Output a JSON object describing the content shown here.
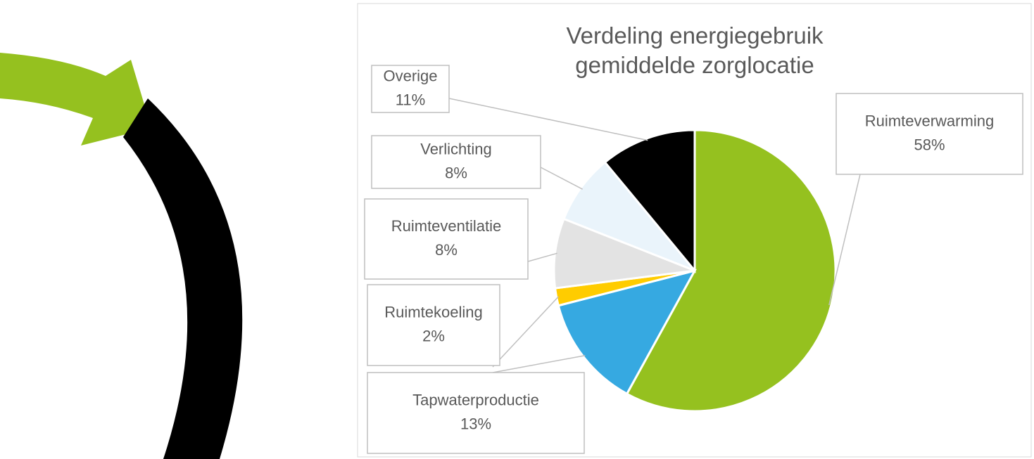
{
  "chart_data": {
    "type": "pie",
    "title": "Verdeling energiegebruik gemiddelde zorglocatie",
    "categories": [
      "Ruimteverwarming",
      "Tapwaterproductie",
      "Ruimtekoeling",
      "Ruimteventilatie",
      "Verlichting",
      "Overige"
    ],
    "values": [
      58,
      13,
      2,
      8,
      8,
      11
    ],
    "value_labels": [
      "58%",
      "13%",
      "2%",
      "8%",
      "8%",
      "11%"
    ],
    "colors": [
      "#95c11f",
      "#36a9e1",
      "#ffcc00",
      "#e3e3e3",
      "#eaf4fb",
      "#000000"
    ]
  }
}
